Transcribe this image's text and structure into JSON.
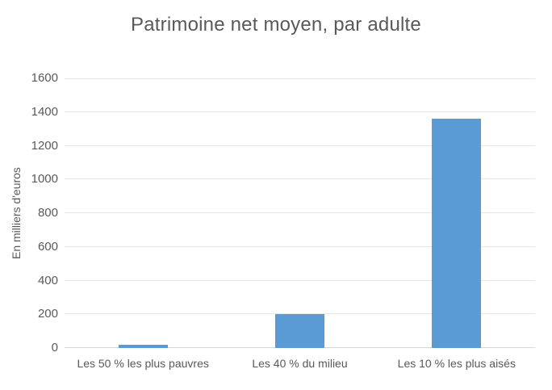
{
  "chart": {
    "title": "Patrimoine net moyen, par adulte"
  },
  "colors": {
    "bar": "#5b9bd5",
    "gridline": "#e5e5e5",
    "baseline": "#d9d9d9",
    "text": "#595959",
    "background": "#ffffff"
  },
  "chart_data": {
    "type": "bar",
    "title": "Patrimoine net moyen, par adulte",
    "categories": [
      "Les 50 % les plus pauvres",
      "Les 40 % du milieu",
      "Les 10 % les plus aisés"
    ],
    "values": [
      20,
      200,
      1360
    ],
    "xlabel": "",
    "ylabel": "En milliers d'euros",
    "ylim": [
      0,
      1600
    ],
    "ytick_step": 200,
    "yticks": [
      0,
      200,
      400,
      600,
      800,
      1000,
      1200,
      1400,
      1600
    ],
    "grid": true,
    "legend": "none",
    "bar_color": "#5b9bd5",
    "bar_gap_hint": "Excel default gap width (~219%)"
  }
}
